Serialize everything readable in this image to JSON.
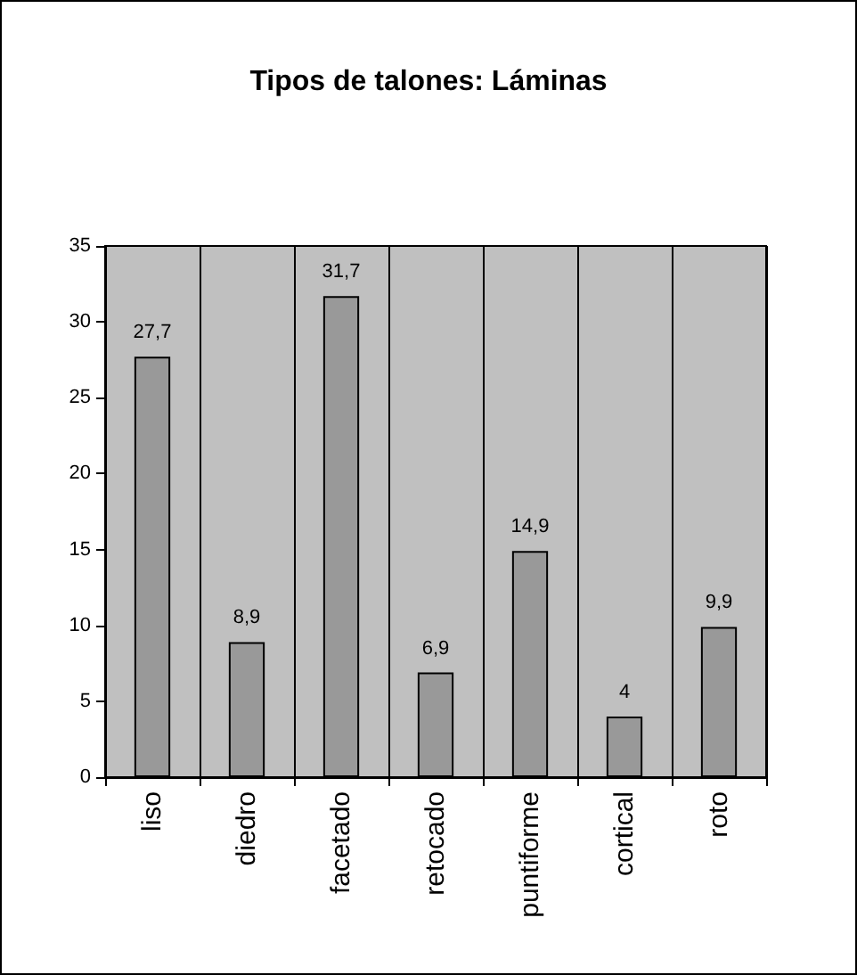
{
  "chart_data": {
    "type": "bar",
    "title": "Tipos de talones: Láminas",
    "categories": [
      "liso",
      "diedro",
      "facetado",
      "retocado",
      "puntiforme",
      "cortical",
      "roto"
    ],
    "values": [
      27.7,
      8.9,
      31.7,
      6.9,
      14.9,
      4,
      9.9
    ],
    "value_labels": [
      "27,7",
      "8,9",
      "31,7",
      "6,9",
      "14,9",
      "4",
      "9,9"
    ],
    "color": "#999999",
    "ylim": [
      0,
      35
    ],
    "yticks": [
      0,
      5,
      10,
      15,
      20,
      25,
      30,
      35
    ],
    "grid": "x"
  }
}
